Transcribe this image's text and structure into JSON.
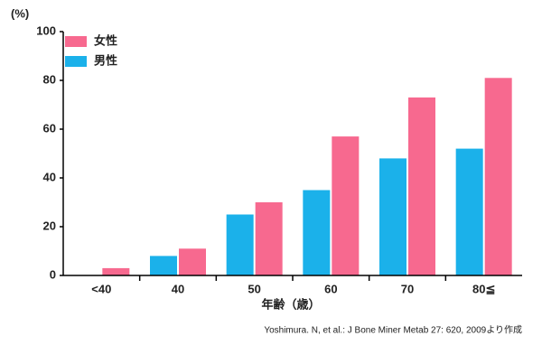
{
  "chart_data": {
    "type": "bar",
    "y_label": "(%)",
    "x_label": "年齢（歳）",
    "source": "Yoshimura. N, et al.: J Bone Miner Metab 27: 620, 2009より作成",
    "categories": [
      "<40",
      "40",
      "50",
      "60",
      "70",
      "80≦"
    ],
    "series": [
      {
        "name": "女性",
        "color": "#f7698f",
        "values": [
          3,
          11,
          30,
          57,
          73,
          81
        ]
      },
      {
        "name": "男性",
        "color": "#1bb1ea",
        "values": [
          null,
          8,
          25,
          35,
          48,
          52
        ]
      }
    ],
    "ylim": [
      0,
      100
    ],
    "yticks": [
      0,
      20,
      40,
      60,
      80,
      100
    ],
    "legend": "top-left"
  }
}
